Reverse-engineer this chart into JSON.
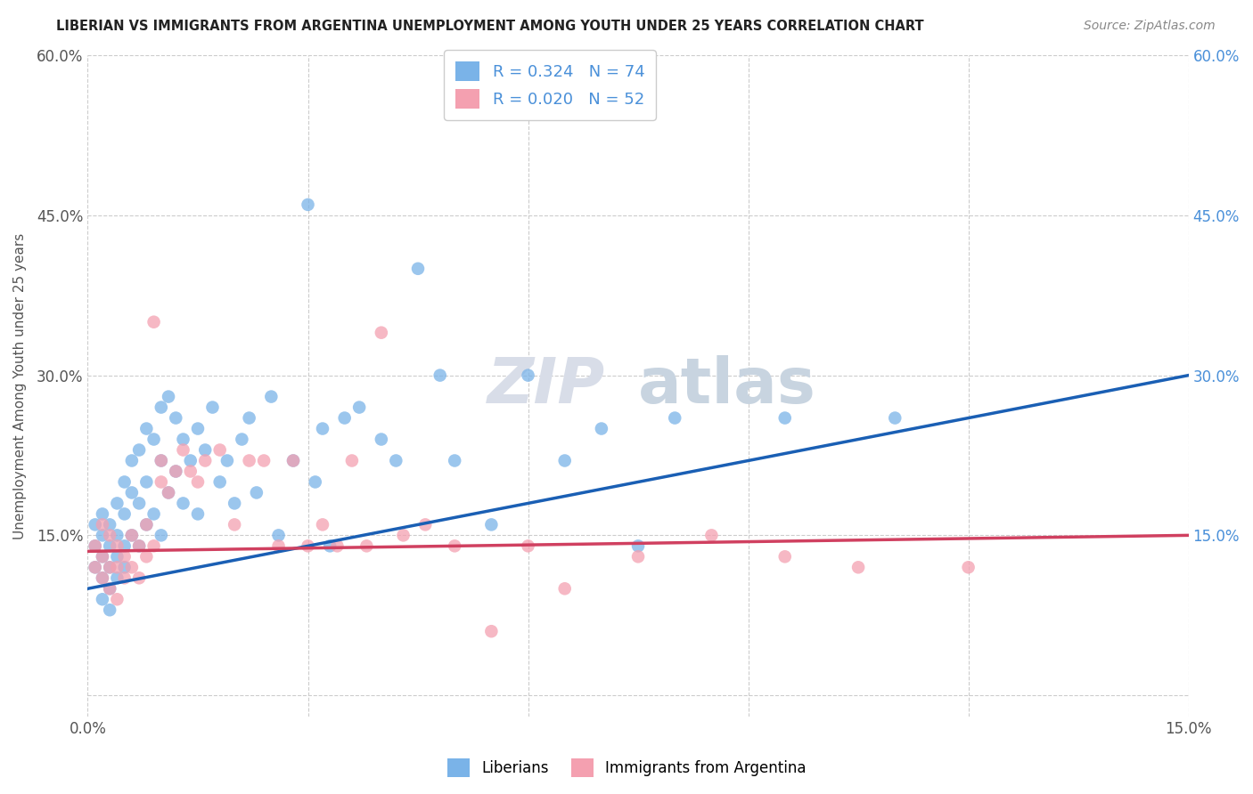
{
  "title": "LIBERIAN VS IMMIGRANTS FROM ARGENTINA UNEMPLOYMENT AMONG YOUTH UNDER 25 YEARS CORRELATION CHART",
  "source": "Source: ZipAtlas.com",
  "ylabel": "Unemployment Among Youth under 25 years",
  "xmin": 0.0,
  "xmax": 0.15,
  "ymin": -0.02,
  "ymax": 0.6,
  "yticks": [
    0.0,
    0.15,
    0.3,
    0.45,
    0.6
  ],
  "ytick_labels_left": [
    "",
    "15.0%",
    "30.0%",
    "45.0%",
    "60.0%"
  ],
  "ytick_labels_right": [
    "",
    "15.0%",
    "30.0%",
    "45.0%",
    "60.0%"
  ],
  "xticks": [
    0.0,
    0.03,
    0.06,
    0.09,
    0.12,
    0.15
  ],
  "xtick_labels": [
    "0.0%",
    "",
    "",
    "",
    "",
    "15.0%"
  ],
  "liberian_color": "#7ab3e8",
  "argentina_color": "#f4a0b0",
  "liberian_R": 0.324,
  "liberian_N": 74,
  "argentina_R": 0.02,
  "argentina_N": 52,
  "regression_blue": "#1a5fb4",
  "regression_pink": "#d04060",
  "watermark_text": "ZIP",
  "watermark_text2": "atlas",
  "legend_entries": [
    "Liberians",
    "Immigrants from Argentina"
  ],
  "liberian_x": [
    0.001,
    0.001,
    0.001,
    0.002,
    0.002,
    0.002,
    0.002,
    0.002,
    0.003,
    0.003,
    0.003,
    0.003,
    0.003,
    0.004,
    0.004,
    0.004,
    0.004,
    0.005,
    0.005,
    0.005,
    0.005,
    0.006,
    0.006,
    0.006,
    0.007,
    0.007,
    0.007,
    0.008,
    0.008,
    0.008,
    0.009,
    0.009,
    0.01,
    0.01,
    0.01,
    0.011,
    0.011,
    0.012,
    0.012,
    0.013,
    0.013,
    0.014,
    0.015,
    0.015,
    0.016,
    0.017,
    0.018,
    0.019,
    0.02,
    0.021,
    0.022,
    0.023,
    0.025,
    0.026,
    0.028,
    0.03,
    0.031,
    0.032,
    0.033,
    0.035,
    0.037,
    0.04,
    0.042,
    0.045,
    0.048,
    0.05,
    0.055,
    0.06,
    0.065,
    0.07,
    0.075,
    0.08,
    0.095,
    0.11
  ],
  "liberian_y": [
    0.14,
    0.16,
    0.12,
    0.15,
    0.17,
    0.13,
    0.11,
    0.09,
    0.16,
    0.14,
    0.12,
    0.1,
    0.08,
    0.15,
    0.18,
    0.13,
    0.11,
    0.2,
    0.17,
    0.14,
    0.12,
    0.19,
    0.22,
    0.15,
    0.23,
    0.18,
    0.14,
    0.25,
    0.2,
    0.16,
    0.24,
    0.17,
    0.27,
    0.22,
    0.15,
    0.28,
    0.19,
    0.26,
    0.21,
    0.24,
    0.18,
    0.22,
    0.25,
    0.17,
    0.23,
    0.27,
    0.2,
    0.22,
    0.18,
    0.24,
    0.26,
    0.19,
    0.28,
    0.15,
    0.22,
    0.46,
    0.2,
    0.25,
    0.14,
    0.26,
    0.27,
    0.24,
    0.22,
    0.4,
    0.3,
    0.22,
    0.16,
    0.3,
    0.22,
    0.25,
    0.14,
    0.26,
    0.26,
    0.26
  ],
  "argentina_x": [
    0.001,
    0.001,
    0.002,
    0.002,
    0.002,
    0.003,
    0.003,
    0.003,
    0.004,
    0.004,
    0.004,
    0.005,
    0.005,
    0.006,
    0.006,
    0.007,
    0.007,
    0.008,
    0.008,
    0.009,
    0.009,
    0.01,
    0.01,
    0.011,
    0.012,
    0.013,
    0.014,
    0.015,
    0.016,
    0.018,
    0.02,
    0.022,
    0.024,
    0.026,
    0.028,
    0.03,
    0.032,
    0.034,
    0.036,
    0.038,
    0.04,
    0.043,
    0.046,
    0.05,
    0.055,
    0.06,
    0.065,
    0.075,
    0.085,
    0.095,
    0.105,
    0.12
  ],
  "argentina_y": [
    0.14,
    0.12,
    0.16,
    0.13,
    0.11,
    0.15,
    0.12,
    0.1,
    0.14,
    0.12,
    0.09,
    0.13,
    0.11,
    0.15,
    0.12,
    0.14,
    0.11,
    0.16,
    0.13,
    0.14,
    0.35,
    0.22,
    0.2,
    0.19,
    0.21,
    0.23,
    0.21,
    0.2,
    0.22,
    0.23,
    0.16,
    0.22,
    0.22,
    0.14,
    0.22,
    0.14,
    0.16,
    0.14,
    0.22,
    0.14,
    0.34,
    0.15,
    0.16,
    0.14,
    0.06,
    0.14,
    0.1,
    0.13,
    0.15,
    0.13,
    0.12,
    0.12
  ]
}
